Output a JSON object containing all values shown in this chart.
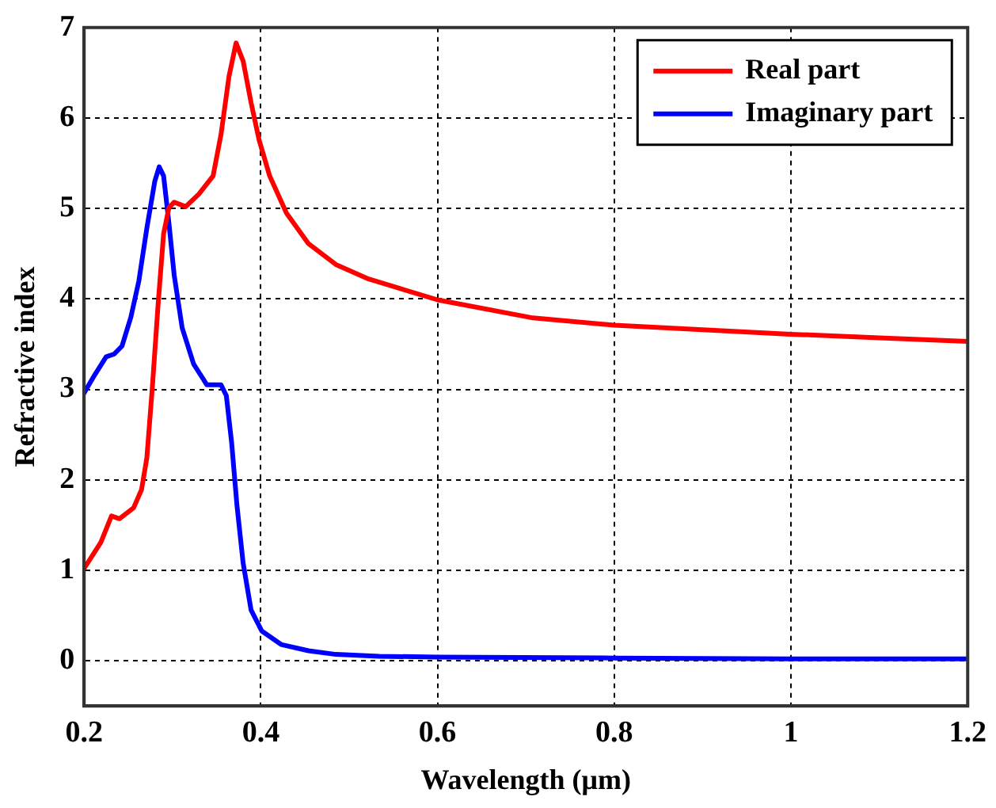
{
  "chart_data": {
    "type": "line",
    "xlabel": "Wavelength (μm)",
    "ylabel": "Refractive index",
    "xlim": [
      0.2,
      1.2
    ],
    "xticks": [
      0.2,
      0.4,
      0.6,
      0.8,
      1,
      1.2
    ],
    "ylim": [
      -0.5,
      7
    ],
    "yticks": [
      0,
      1,
      2,
      3,
      4,
      5,
      6,
      7
    ],
    "grid": true,
    "legend": "top right",
    "marker": "none",
    "line_style": "solid",
    "series": [
      {
        "name": "Real part",
        "color": "#ff0000",
        "x": [
          0.2,
          0.219,
          0.231,
          0.24,
          0.256,
          0.265,
          0.271,
          0.277,
          0.284,
          0.29,
          0.296,
          0.302,
          0.315,
          0.33,
          0.346,
          0.355,
          0.364,
          0.372,
          0.38,
          0.389,
          0.398,
          0.41,
          0.429,
          0.454,
          0.485,
          0.522,
          0.6,
          0.708,
          0.8,
          0.9,
          1.0,
          1.1,
          1.2
        ],
        "values": [
          1.02,
          1.31,
          1.6,
          1.57,
          1.69,
          1.89,
          2.24,
          2.99,
          3.97,
          4.72,
          5.01,
          5.07,
          5.02,
          5.16,
          5.36,
          5.82,
          6.46,
          6.83,
          6.63,
          6.17,
          5.76,
          5.36,
          4.95,
          4.61,
          4.38,
          4.22,
          3.99,
          3.79,
          3.71,
          3.66,
          3.61,
          3.57,
          3.53
        ]
      },
      {
        "name": "Imaginary part",
        "color": "#0000ff",
        "x": [
          0.2,
          0.212,
          0.225,
          0.234,
          0.243,
          0.253,
          0.262,
          0.271,
          0.28,
          0.285,
          0.29,
          0.296,
          0.302,
          0.311,
          0.324,
          0.339,
          0.355,
          0.361,
          0.367,
          0.373,
          0.38,
          0.389,
          0.401,
          0.423,
          0.454,
          0.485,
          0.534,
          0.6,
          0.8,
          1.0,
          1.2
        ],
        "values": [
          2.96,
          3.16,
          3.36,
          3.39,
          3.48,
          3.8,
          4.2,
          4.78,
          5.3,
          5.46,
          5.36,
          4.84,
          4.26,
          3.68,
          3.28,
          3.05,
          3.05,
          2.93,
          2.41,
          1.72,
          1.08,
          0.56,
          0.33,
          0.18,
          0.11,
          0.07,
          0.05,
          0.04,
          0.03,
          0.02,
          0.02
        ]
      }
    ]
  }
}
